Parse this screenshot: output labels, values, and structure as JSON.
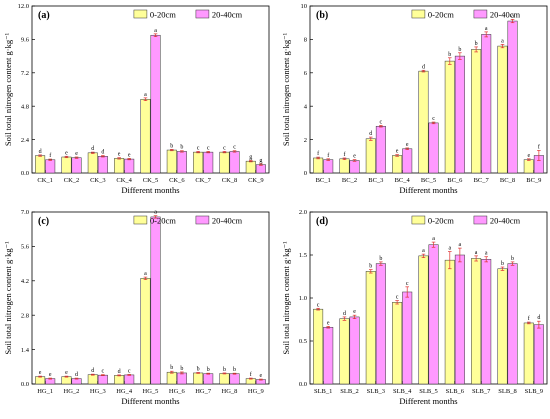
{
  "colors": {
    "series1": "#ffff99",
    "series2": "#ff99ff",
    "errorbar": "#e03030",
    "axis": "#000000"
  },
  "chart_data": [
    {
      "type": "bar",
      "panel": "(a)",
      "xlabel": "Different months",
      "ylabel": "Soil total nitrogen content g·kg⁻¹",
      "ylim": [
        0,
        12
      ],
      "yticks": [
        "0.0",
        "2.4",
        "4.8",
        "7.2",
        "9.6",
        "12.0"
      ],
      "legend": "top-right",
      "categories": [
        "CK_1",
        "CK_2",
        "CK_3",
        "CK_4",
        "CK_5",
        "CK_6",
        "CK_7",
        "CK_8",
        "CK_9"
      ],
      "series": [
        {
          "name": "0-20cm",
          "values": [
            1.25,
            1.15,
            1.45,
            1.05,
            5.3,
            1.65,
            1.5,
            1.5,
            0.85
          ],
          "errors": [
            0.05,
            0.05,
            0.05,
            0.05,
            0.1,
            0.05,
            0.05,
            0.05,
            0.05
          ],
          "letters": [
            "d",
            "e",
            "d",
            "e",
            "a",
            "b",
            "c",
            "c",
            "g"
          ]
        },
        {
          "name": "20-40cm",
          "values": [
            0.95,
            1.1,
            1.2,
            1.0,
            9.9,
            1.55,
            1.5,
            1.55,
            0.6
          ],
          "errors": [
            0.05,
            0.05,
            0.05,
            0.05,
            0.1,
            0.05,
            0.05,
            0.05,
            0.05
          ],
          "letters": [
            "f",
            "e",
            "d",
            "e",
            "a",
            "b",
            "c",
            "c",
            "g"
          ]
        }
      ]
    },
    {
      "type": "bar",
      "panel": "(b)",
      "xlabel": "Different months",
      "ylabel": "Soil total nitrogen content g·kg⁻¹",
      "ylim": [
        0,
        10
      ],
      "yticks": [
        "0",
        "2",
        "4",
        "6",
        "8",
        "10"
      ],
      "legend": "top-right",
      "categories": [
        "BC_1",
        "BC_2",
        "BC_3",
        "BC_4",
        "BC_5",
        "BC_6",
        "BC_7",
        "BC_8",
        "BC_9"
      ],
      "series": [
        {
          "name": "0-20cm",
          "values": [
            0.9,
            0.85,
            2.05,
            1.05,
            6.1,
            6.7,
            7.4,
            7.6,
            0.8
          ],
          "errors": [
            0.05,
            0.05,
            0.1,
            0.05,
            0.05,
            0.2,
            0.15,
            0.1,
            0.05
          ],
          "letters": [
            "f",
            "f",
            "d",
            "e",
            "d",
            "b",
            "b",
            "a",
            "e"
          ]
        },
        {
          "name": "20-40cm",
          "values": [
            0.8,
            0.75,
            2.8,
            1.45,
            3.0,
            7.0,
            8.3,
            9.1,
            1.05
          ],
          "errors": [
            0.05,
            0.05,
            0.05,
            0.05,
            0.05,
            0.2,
            0.15,
            0.1,
            0.3
          ],
          "letters": [
            "f",
            "e",
            "c",
            "e",
            "c",
            "b",
            "a",
            "a",
            "f"
          ]
        }
      ]
    },
    {
      "type": "bar",
      "panel": "(c)",
      "xlabel": "Different months",
      "ylabel": "Soil total nitrogen content g·kg⁻¹",
      "ylim": [
        0,
        7
      ],
      "yticks": [
        "0.0",
        "1.4",
        "2.8",
        "4.2",
        "5.6",
        "7.0"
      ],
      "legend": "top-right",
      "categories": [
        "HG_1",
        "HG_2",
        "HG_3",
        "HG_4",
        "HG_5",
        "HG_6",
        "HG_7",
        "HG_8",
        "HG_9"
      ],
      "series": [
        {
          "name": "0-20cm",
          "values": [
            0.3,
            0.3,
            0.38,
            0.35,
            4.3,
            0.48,
            0.45,
            0.43,
            0.22
          ],
          "errors": [
            0.02,
            0.02,
            0.02,
            0.02,
            0.05,
            0.04,
            0.02,
            0.02,
            0.02
          ],
          "letters": [
            "e",
            "e",
            "d",
            "d",
            "a",
            "b",
            "b",
            "b",
            "f"
          ]
        },
        {
          "name": "20-40cm",
          "values": [
            0.22,
            0.22,
            0.36,
            0.37,
            6.8,
            0.45,
            0.42,
            0.42,
            0.18
          ],
          "errors": [
            0.02,
            0.02,
            0.02,
            0.02,
            0.05,
            0.04,
            0.02,
            0.02,
            0.02
          ],
          "letters": [
            "e",
            "d",
            "c",
            "c",
            "a",
            "b",
            "b",
            "b",
            "e"
          ]
        }
      ]
    },
    {
      "type": "bar",
      "panel": "(d)",
      "xlabel": "Different months",
      "ylabel": "Soil total nitrogen content g·kg⁻¹",
      "ylim": [
        0,
        2.0
      ],
      "yticks": [
        "0.0",
        "0.5",
        "1.0",
        "1.5",
        "2.0"
      ],
      "legend": "top-right",
      "categories": [
        "SLB_1",
        "SLB_2",
        "SLB_3",
        "SLB_4",
        "SLB_5",
        "SLB_6",
        "SLB_7",
        "SLB_8",
        "SLB_9"
      ],
      "series": [
        {
          "name": "0-20cm",
          "values": [
            0.87,
            0.76,
            1.31,
            0.95,
            1.49,
            1.44,
            1.46,
            1.34,
            0.71
          ],
          "errors": [
            0.01,
            0.02,
            0.02,
            0.02,
            0.02,
            0.1,
            0.03,
            0.02,
            0.01
          ],
          "letters": [
            "c",
            "d",
            "b",
            "c",
            "a",
            "a",
            "a",
            "b",
            "f"
          ]
        },
        {
          "name": "20-40cm",
          "values": [
            0.66,
            0.78,
            1.4,
            1.07,
            1.62,
            1.5,
            1.45,
            1.4,
            0.69
          ],
          "errors": [
            0.01,
            0.02,
            0.02,
            0.06,
            0.03,
            0.08,
            0.03,
            0.02,
            0.04
          ],
          "letters": [
            "e",
            "e",
            "b",
            "c",
            "a",
            "a",
            "a",
            "b",
            "d"
          ]
        }
      ]
    }
  ]
}
